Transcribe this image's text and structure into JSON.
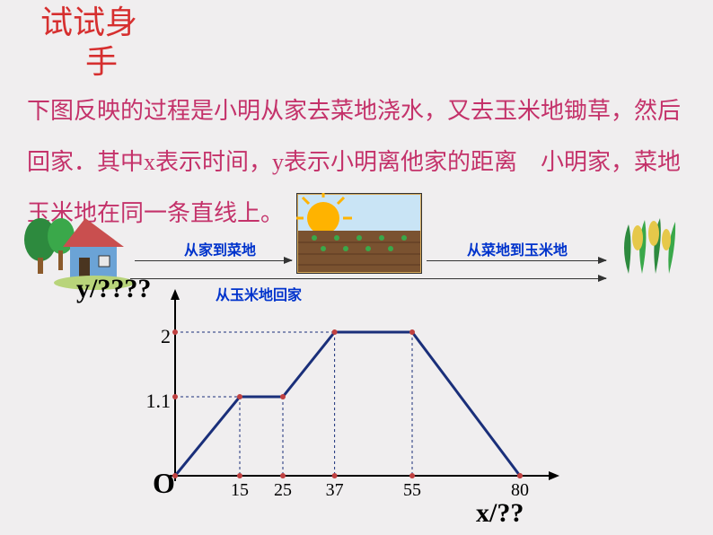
{
  "title_line1": "试试身",
  "title_line2": "手",
  "problem_text": "下图反映的过程是小明从家去菜地浇水，又去玉米地锄草，然后回家．其中x表示时间，y表示小明离他家的距离　小明家，菜地　玉米地在同一条直线上。",
  "journey": {
    "label1": "从家到菜地",
    "label2": "从菜地到玉米地",
    "label3": "从玉米地回家"
  },
  "chart": {
    "y_label": "y/????",
    "x_label": "x/??",
    "origin_label": "O",
    "y_ticks": [
      "1.1",
      "2"
    ],
    "y_tick_values": [
      1.1,
      2
    ],
    "x_ticks": [
      "15",
      "25",
      "37",
      "55",
      "80"
    ],
    "x_tick_values": [
      15,
      25,
      37,
      55,
      80
    ],
    "points": [
      {
        "x": 0,
        "y": 0
      },
      {
        "x": 15,
        "y": 1.1
      },
      {
        "x": 25,
        "y": 1.1
      },
      {
        "x": 37,
        "y": 2
      },
      {
        "x": 55,
        "y": 2
      },
      {
        "x": 80,
        "y": 0
      }
    ],
    "line_color": "#1a2f7a",
    "line_width": 3,
    "axis_color": "#000000",
    "dash_color": "#1a2f7a",
    "x_axis_length": 430,
    "y_axis_length": 200,
    "x_scale": 4.8,
    "y_scale": 80,
    "origin_x": 0,
    "origin_y": 200
  },
  "icons": {
    "house_colors": {
      "wall": "#6ba3d6",
      "roof": "#c94f4f",
      "tree": "#2d8a3e",
      "trunk": "#8b5a2b"
    },
    "field_colors": {
      "sky": "#87ceeb",
      "sun": "#ffb300",
      "ground": "#7a5230"
    },
    "corn_colors": {
      "leaf": "#2d8a3e",
      "cob": "#e6c84a"
    }
  }
}
